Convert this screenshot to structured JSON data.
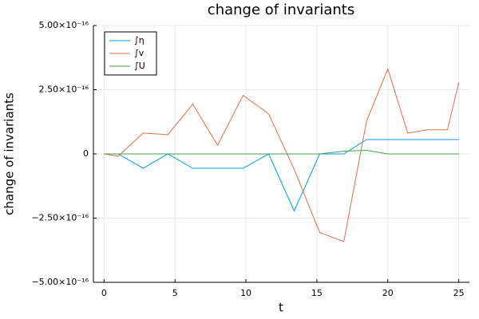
{
  "chart_data": {
    "type": "line",
    "title": "change of invariants",
    "x_label": "t",
    "y_label": "change of invariants",
    "x": [
      0,
      1,
      2.75,
      4.5,
      6.25,
      8,
      9.8,
      11.6,
      13.4,
      15.2,
      16.9,
      18.5,
      20,
      21.4,
      22.8,
      24.2,
      25
    ],
    "series": [
      {
        "name": "∫η",
        "color": "#009af9",
        "values": [
          0,
          0,
          -5.6e-17,
          0,
          -5.6e-17,
          -5.6e-17,
          -5.6e-17,
          0,
          -2.22e-16,
          0,
          0,
          5.6e-17,
          5.6e-17,
          5.6e-17,
          5.6e-17,
          5.6e-17,
          5.6e-17
        ]
      },
      {
        "name": "∫v",
        "color": "#e26f46",
        "values": [
          0,
          -9e-18,
          8.1e-17,
          7.5e-17,
          1.94e-16,
          3.4e-17,
          2.28e-16,
          1.56e-16,
          -6e-17,
          -3.06e-16,
          -3.41e-16,
          1.28e-16,
          3.31e-16,
          8.1e-17,
          9.4e-17,
          9.4e-17,
          2.78e-16
        ]
      },
      {
        "name": "∫U",
        "color": "#3da44d",
        "values": [
          0,
          0,
          0,
          0,
          0,
          0,
          0,
          0,
          0,
          0,
          1.1e-17,
          1.4e-17,
          0,
          0,
          0,
          0,
          0
        ]
      }
    ],
    "xlim": [
      -0.75,
      25.75
    ],
    "xticks": [
      0,
      5,
      10,
      15,
      20,
      25
    ],
    "ylim": [
      -5e-16,
      5e-16
    ],
    "yticks": [
      {
        "value": -5e-16,
        "label": "−5.00×10⁻¹⁶"
      },
      {
        "value": -2.5e-16,
        "label": "−2.50×10⁻¹⁶"
      },
      0,
      {
        "value": 2.5e-16,
        "label": "2.50×10⁻¹⁶"
      },
      {
        "value": 5e-16,
        "label": "5.00×10⁻¹⁶"
      }
    ],
    "grid": true,
    "legend": "top-left"
  }
}
